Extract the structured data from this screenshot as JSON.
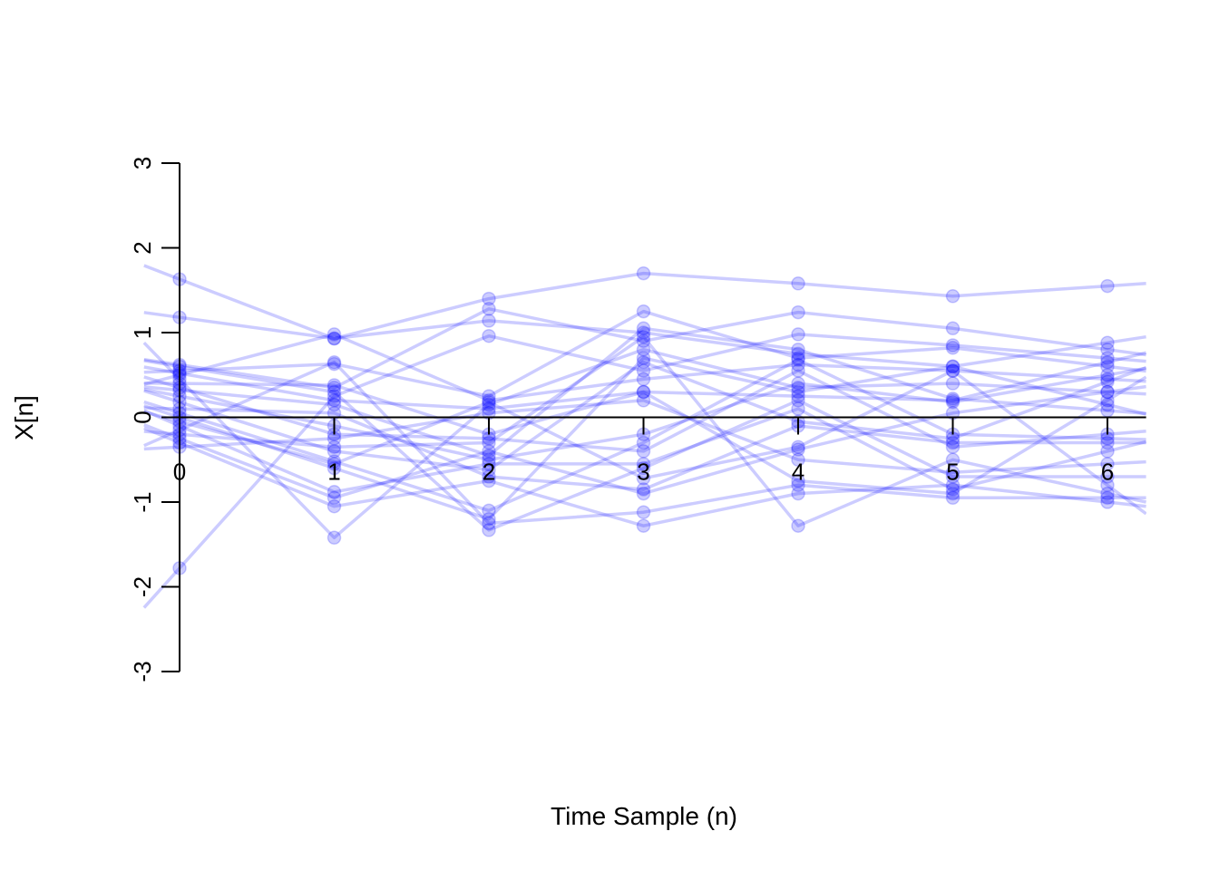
{
  "chart_data": {
    "type": "line",
    "title": "",
    "xlabel": "Time Sample (n)",
    "ylabel": "X[n]",
    "x": [
      0,
      1,
      2,
      3,
      4,
      5,
      6
    ],
    "xlim": [
      -0.23,
      6.25
    ],
    "ylim": [
      -3,
      3
    ],
    "x_ticks": [
      "0",
      "1",
      "2",
      "3",
      "4",
      "5",
      "6"
    ],
    "y_ticks": [
      "-3",
      "-2",
      "-1",
      "0",
      "1",
      "2",
      "3"
    ],
    "line_color": "#0000ff",
    "line_opacity": 0.2,
    "grid": false,
    "legend": "none",
    "series": [
      {
        "values": [
          1.63,
          0.93,
          1.4,
          1.7,
          1.58,
          1.43,
          1.55
        ]
      },
      {
        "values": [
          1.18,
          0.93,
          1.14,
          1.0,
          0.75,
          0.6,
          0.88
        ]
      },
      {
        "values": [
          0.62,
          0.35,
          1.28,
          0.9,
          1.24,
          1.05,
          0.8
        ]
      },
      {
        "values": [
          -1.78,
          0.25,
          0.96,
          0.55,
          0.98,
          0.85,
          0.7
        ]
      },
      {
        "values": [
          0.55,
          0.63,
          0.25,
          1.25,
          0.7,
          0.82,
          0.6
        ]
      },
      {
        "values": [
          0.5,
          0.98,
          0.2,
          0.45,
          0.62,
          0.55,
          0.45
        ]
      },
      {
        "values": [
          0.45,
          -1.42,
          0.15,
          0.8,
          0.35,
          0.4,
          0.3
        ]
      },
      {
        "values": [
          0.4,
          0.38,
          -0.2,
          0.3,
          0.25,
          0.2,
          0.65
        ]
      },
      {
        "values": [
          0.32,
          0.15,
          -0.45,
          1.05,
          0.8,
          0.22,
          0.08
        ]
      },
      {
        "values": [
          0.25,
          -0.1,
          -0.5,
          -0.2,
          0.4,
          0.18,
          0.5
        ]
      },
      {
        "values": [
          0.18,
          -0.4,
          -0.62,
          0.65,
          -0.05,
          -0.25,
          0.42
        ]
      },
      {
        "values": [
          0.1,
          0.05,
          -0.7,
          -0.85,
          -0.1,
          -0.3,
          -0.3
        ]
      },
      {
        "values": [
          0.05,
          -0.52,
          -1.1,
          -0.3,
          0.68,
          -0.2,
          -0.25
        ]
      },
      {
        "values": [
          -0.05,
          -0.55,
          0.18,
          -0.72,
          -0.35,
          0.55,
          -0.8
        ]
      },
      {
        "values": [
          -0.1,
          -0.88,
          -0.55,
          -0.55,
          0.1,
          -0.85,
          -0.4
        ]
      },
      {
        "values": [
          -0.15,
          0.65,
          -1.25,
          -1.12,
          -0.8,
          -0.95,
          -0.95
        ]
      },
      {
        "values": [
          -0.2,
          -0.35,
          -0.3,
          0.95,
          -1.28,
          -0.5,
          -0.9
        ]
      },
      {
        "values": [
          -0.25,
          -0.95,
          -0.4,
          -0.9,
          -0.38,
          0.05,
          0.3
        ]
      },
      {
        "values": [
          -0.3,
          -1.05,
          -0.75,
          -1.28,
          -0.9,
          -0.8,
          -1.0
        ]
      },
      {
        "values": [
          0.6,
          0.3,
          -1.33,
          -0.6,
          0.2,
          -0.7,
          -0.7
        ]
      },
      {
        "values": [
          0.52,
          0.2,
          0.1,
          0.3,
          -0.75,
          -0.9,
          0.2
        ]
      },
      {
        "values": [
          0.35,
          -0.2,
          -0.25,
          -0.4,
          0.55,
          -0.35,
          -0.2
        ]
      },
      {
        "values": [
          -0.35,
          -0.25,
          0.05,
          0.2,
          -0.5,
          -0.65,
          -0.55
        ]
      },
      {
        "values": [
          0.0,
          -0.6,
          -1.2,
          0.7,
          0.3,
          0.6,
          0.15
        ]
      }
    ]
  }
}
